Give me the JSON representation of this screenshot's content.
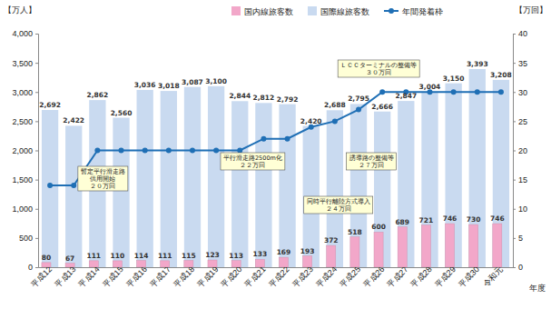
{
  "chart_data": {
    "type": "bar",
    "y_label": "【万人】",
    "y2_label": "【万回】",
    "x_label": "年度",
    "categories": [
      "平成12",
      "平成13",
      "平成14",
      "平成15",
      "平成16",
      "平成17",
      "平成18",
      "平成19",
      "平成20",
      "平成21",
      "平成22",
      "平成23",
      "平成24",
      "平成25",
      "平成26",
      "平成27",
      "平成28",
      "平成29",
      "平成30",
      "令和元"
    ],
    "series": [
      {
        "name": "国内線旅客数",
        "type": "bar",
        "color": "#f2a7c9",
        "data_labels": true,
        "values": [
          80,
          67,
          111,
          110,
          114,
          111,
          115,
          123,
          113,
          133,
          169,
          193,
          372,
          518,
          600,
          689,
          721,
          746,
          730,
          746
        ]
      },
      {
        "name": "国際線旅客数",
        "type": "bar",
        "color": "#c9daf0",
        "data_labels": true,
        "values": [
          2692,
          2422,
          2862,
          2560,
          3036,
          3018,
          3087,
          3100,
          2844,
          2812,
          2792,
          2420,
          2688,
          2795,
          2666,
          2847,
          3004,
          3150,
          3393,
          3208
        ],
        "value_labels": [
          "2,692",
          "2,422",
          "2,862",
          "2,560",
          "3,036",
          "3,018",
          "3,087",
          "3,100",
          "2,844",
          "2,812",
          "2,792",
          "2,420",
          "2,688",
          "2,795",
          "2,666",
          "2,847",
          "3,004",
          "3,150",
          "3,393",
          "3,208"
        ]
      },
      {
        "name": "年間発着枠",
        "type": "line",
        "axis": "y2",
        "color": "#1f6fb5",
        "marker": "circle",
        "data_labels": false,
        "values": [
          14,
          14,
          20,
          20,
          20,
          20,
          20,
          20,
          20,
          22,
          22,
          24,
          25,
          27,
          30,
          30,
          30,
          30,
          30,
          30
        ]
      }
    ],
    "ylim": [
      0,
      4000
    ],
    "yticks": [
      0,
      500,
      {
        "value": 1000,
        "label": "1,000"
      },
      {
        "value": 1500,
        "label": "1,500"
      },
      {
        "value": 2000,
        "label": "2,000"
      },
      {
        "value": 2500,
        "label": "2,500"
      },
      {
        "value": 3000,
        "label": "3,000"
      },
      {
        "value": 3500,
        "label": "3,500"
      },
      {
        "value": 4000,
        "label": "4,000"
      }
    ],
    "y2lim": [
      0,
      40
    ],
    "y2ticks": [
      0,
      5,
      10,
      15,
      20,
      25,
      30,
      35,
      40
    ],
    "grid": false,
    "legend": "top",
    "annotations": [
      {
        "category": "平成14",
        "lines": [
          "暫定平行滑走路",
          "供用開始",
          "２０万回"
        ]
      },
      {
        "category": "平成21",
        "lines": [
          "平行滑走路2500m化",
          "２２万回"
        ]
      },
      {
        "category": "平成23",
        "lines": [
          "同時平行離陸方式導入",
          "２４万回"
        ]
      },
      {
        "category": "平成25",
        "lines": [
          "誘導路の整備等",
          "２７万回"
        ]
      },
      {
        "category": "平成26",
        "lines": [
          "ＬＣＣターミナルの整備等",
          "３０万回"
        ]
      }
    ]
  }
}
